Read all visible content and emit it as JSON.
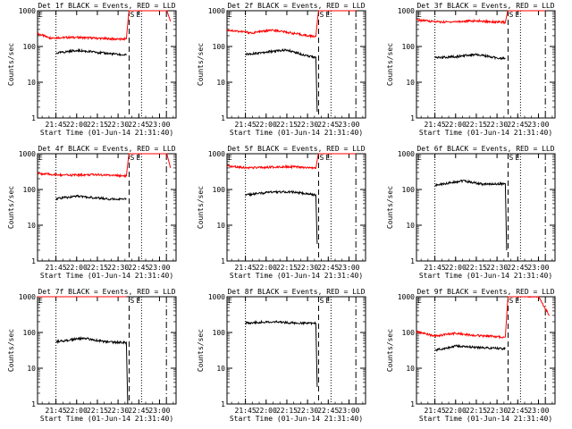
{
  "chart_data": [
    {
      "type": "line",
      "title": "Det 1f BLACK = Events, RED = LLD",
      "xlabel": "Start Time (01-Jun-14 21:31:40)",
      "ylabel": "Counts/sec",
      "x_ticks": [
        "21:45",
        "22:00",
        "22:15",
        "22:30",
        "22:45",
        "23:00"
      ],
      "y_ticks": [
        "1",
        "10",
        "100",
        "1000"
      ],
      "ylim": [
        1,
        1000
      ],
      "y_scale": "log",
      "markers": [
        "S",
        "E",
        "E"
      ],
      "series": [
        {
          "color": "#ff0000",
          "values": [
            {
              "t": "21:31:40",
              "v": 230
            },
            {
              "t": "21:40",
              "v": 175
            },
            {
              "t": "22:00",
              "v": 180
            },
            {
              "t": "22:30",
              "v": 160
            },
            {
              "t": "22:36",
              "v": 165
            },
            {
              "t": "22:38",
              "v": 1100
            },
            {
              "t": "23:05",
              "v": 1100
            },
            {
              "t": "23:08",
              "v": 500
            }
          ]
        },
        {
          "color": "#000000",
          "values": [
            {
              "t": "21:45",
              "v": 65
            },
            {
              "t": "22:00",
              "v": 78
            },
            {
              "t": "22:15",
              "v": 68
            },
            {
              "t": "22:30",
              "v": 60
            },
            {
              "t": "22:36",
              "v": 57
            }
          ]
        }
      ]
    },
    {
      "type": "line",
      "title": "Det 2f BLACK = Events, RED = LLD",
      "xlabel": "Start Time (01-Jun-14 21:31:40)",
      "ylabel": "Counts/sec",
      "x_ticks": [
        "21:45",
        "22:00",
        "22:15",
        "22:30",
        "22:45",
        "23:00"
      ],
      "y_ticks": [
        "1",
        "10",
        "100",
        "1000"
      ],
      "ylim": [
        1,
        1000
      ],
      "y_scale": "log",
      "markers": [
        "S",
        "E",
        "E"
      ],
      "series": [
        {
          "color": "#ff0000",
          "values": [
            {
              "t": "21:31:40",
              "v": 290
            },
            {
              "t": "21:50",
              "v": 240
            },
            {
              "t": "22:05",
              "v": 290
            },
            {
              "t": "22:30",
              "v": 200
            },
            {
              "t": "22:36",
              "v": 190
            },
            {
              "t": "22:38",
              "v": 1100
            },
            {
              "t": "23:05",
              "v": 1100
            }
          ]
        },
        {
          "color": "#000000",
          "values": [
            {
              "t": "21:45",
              "v": 60
            },
            {
              "t": "22:00",
              "v": 70
            },
            {
              "t": "22:15",
              "v": 80
            },
            {
              "t": "22:30",
              "v": 55
            },
            {
              "t": "22:36",
              "v": 50
            },
            {
              "t": "22:37",
              "v": 1.5
            }
          ]
        }
      ]
    },
    {
      "type": "line",
      "title": "Det 3f BLACK = Events, RED = LLD",
      "xlabel": "Start Time (01-Jun-14 21:31:40)",
      "ylabel": "Counts/sec",
      "x_ticks": [
        "21:45",
        "22:00",
        "22:15",
        "22:30",
        "22:45",
        "23:00"
      ],
      "y_ticks": [
        "1",
        "10",
        "100",
        "1000"
      ],
      "ylim": [
        1,
        1000
      ],
      "y_scale": "log",
      "markers": [
        "S",
        "E",
        "E"
      ],
      "series": [
        {
          "color": "#ff0000",
          "values": [
            {
              "t": "21:31:40",
              "v": 550
            },
            {
              "t": "21:50",
              "v": 480
            },
            {
              "t": "22:15",
              "v": 520
            },
            {
              "t": "22:36",
              "v": 470
            },
            {
              "t": "22:38",
              "v": 1100
            },
            {
              "t": "23:05",
              "v": 1100
            }
          ]
        },
        {
          "color": "#000000",
          "values": [
            {
              "t": "21:45",
              "v": 48
            },
            {
              "t": "22:00",
              "v": 52
            },
            {
              "t": "22:15",
              "v": 60
            },
            {
              "t": "22:30",
              "v": 48
            },
            {
              "t": "22:36",
              "v": 47
            }
          ]
        }
      ]
    },
    {
      "type": "line",
      "title": "Det 4f BLACK = Events, RED = LLD",
      "xlabel": "Start Time (01-Jun-14 21:31:40)",
      "ylabel": "Counts/sec",
      "x_ticks": [
        "21:45",
        "22:00",
        "22:15",
        "22:30",
        "22:45",
        "23:00"
      ],
      "y_ticks": [
        "1",
        "10",
        "100",
        "1000"
      ],
      "ylim": [
        1,
        1000
      ],
      "y_scale": "log",
      "markers": [
        "S",
        "E",
        "E"
      ],
      "series": [
        {
          "color": "#ff0000",
          "values": [
            {
              "t": "21:31:40",
              "v": 280
            },
            {
              "t": "21:50",
              "v": 250
            },
            {
              "t": "22:15",
              "v": 260
            },
            {
              "t": "22:36",
              "v": 240
            },
            {
              "t": "22:38",
              "v": 1100
            },
            {
              "t": "23:05",
              "v": 1100
            },
            {
              "t": "23:08",
              "v": 400
            }
          ]
        },
        {
          "color": "#000000",
          "values": [
            {
              "t": "21:45",
              "v": 55
            },
            {
              "t": "22:00",
              "v": 65
            },
            {
              "t": "22:15",
              "v": 58
            },
            {
              "t": "22:30",
              "v": 52
            },
            {
              "t": "22:36",
              "v": 55
            }
          ]
        }
      ]
    },
    {
      "type": "line",
      "title": "Det 5f BLACK = Events, RED = LLD",
      "xlabel": "Start Time (01-Jun-14 21:31:40)",
      "ylabel": "Counts/sec",
      "x_ticks": [
        "21:45",
        "22:00",
        "22:15",
        "22:30",
        "22:45",
        "23:00"
      ],
      "y_ticks": [
        "1",
        "10",
        "100",
        "1000"
      ],
      "ylim": [
        1,
        1000
      ],
      "y_scale": "log",
      "markers": [
        "S",
        "E",
        "E"
      ],
      "series": [
        {
          "color": "#ff0000",
          "values": [
            {
              "t": "21:31:40",
              "v": 450
            },
            {
              "t": "21:50",
              "v": 400
            },
            {
              "t": "22:15",
              "v": 440
            },
            {
              "t": "22:36",
              "v": 390
            },
            {
              "t": "22:38",
              "v": 1100
            },
            {
              "t": "23:05",
              "v": 1100
            }
          ]
        },
        {
          "color": "#000000",
          "values": [
            {
              "t": "21:45",
              "v": 70
            },
            {
              "t": "22:05",
              "v": 85
            },
            {
              "t": "22:20",
              "v": 85
            },
            {
              "t": "22:36",
              "v": 70
            },
            {
              "t": "22:37",
              "v": 3
            }
          ]
        }
      ]
    },
    {
      "type": "line",
      "title": "Det 6f BLACK = Events, RED = LLD",
      "xlabel": "Start Time (01-Jun-14 21:31:40)",
      "ylabel": "Counts/sec",
      "x_ticks": [
        "21:45",
        "22:00",
        "22:15",
        "22:30",
        "22:45",
        "23:00"
      ],
      "y_ticks": [
        "1",
        "10",
        "100",
        "1000"
      ],
      "ylim": [
        1,
        1000
      ],
      "y_scale": "log",
      "markers": [
        "S",
        "E",
        "E"
      ],
      "series": [
        {
          "color": "#000000",
          "values": [
            {
              "t": "21:45",
              "v": 130
            },
            {
              "t": "22:05",
              "v": 175
            },
            {
              "t": "22:20",
              "v": 140
            },
            {
              "t": "22:36",
              "v": 145
            },
            {
              "t": "22:37",
              "v": 2
            }
          ]
        }
      ]
    },
    {
      "type": "line",
      "title": "Det 7f BLACK = Events, RED = LLD",
      "xlabel": "Start Time (01-Jun-14 21:31:40)",
      "ylabel": "Counts/sec",
      "x_ticks": [
        "21:45",
        "22:00",
        "22:15",
        "22:30",
        "22:45",
        "23:00"
      ],
      "y_ticks": [
        "1",
        "10",
        "100",
        "1000"
      ],
      "ylim": [
        1,
        1000
      ],
      "y_scale": "log",
      "markers": [
        "S",
        "E",
        "E"
      ],
      "series": [
        {
          "color": "#ff0000",
          "values": [
            {
              "t": "21:31:40",
              "v": 1150
            },
            {
              "t": "22:36",
              "v": 1150
            }
          ]
        },
        {
          "color": "#000000",
          "values": [
            {
              "t": "21:45",
              "v": 55
            },
            {
              "t": "22:05",
              "v": 70
            },
            {
              "t": "22:20",
              "v": 55
            },
            {
              "t": "22:36",
              "v": 52
            },
            {
              "t": "22:37",
              "v": 1
            }
          ]
        }
      ]
    },
    {
      "type": "line",
      "title": "Det 8f BLACK = Events, RED = LLD",
      "xlabel": "Start Time (01-Jun-14 21:31:40)",
      "ylabel": "Counts/sec",
      "x_ticks": [
        "21:45",
        "22:00",
        "22:15",
        "22:30",
        "22:45",
        "23:00"
      ],
      "y_ticks": [
        "1",
        "10",
        "100",
        "1000"
      ],
      "ylim": [
        1,
        1000
      ],
      "y_scale": "log",
      "markers": [
        "S",
        "E",
        "E"
      ],
      "series": [
        {
          "color": "#000000",
          "values": [
            {
              "t": "21:45",
              "v": 185
            },
            {
              "t": "22:05",
              "v": 200
            },
            {
              "t": "22:20",
              "v": 185
            },
            {
              "t": "22:36",
              "v": 180
            },
            {
              "t": "22:37",
              "v": 3
            }
          ]
        }
      ]
    },
    {
      "type": "line",
      "title": "Det 9f BLACK = Events, RED = LLD",
      "xlabel": "Start Time (01-Jun-14 21:31:40)",
      "ylabel": "Counts/sec",
      "x_ticks": [
        "21:45",
        "22:00",
        "22:15",
        "22:30",
        "22:45",
        "23:00"
      ],
      "y_ticks": [
        "1",
        "10",
        "100",
        "1000"
      ],
      "ylim": [
        1,
        1000
      ],
      "y_scale": "log",
      "markers": [
        "S",
        "E",
        "E"
      ],
      "series": [
        {
          "color": "#ff0000",
          "values": [
            {
              "t": "21:31:40",
              "v": 105
            },
            {
              "t": "21:45",
              "v": 80
            },
            {
              "t": "22:00",
              "v": 95
            },
            {
              "t": "22:15",
              "v": 82
            },
            {
              "t": "22:36",
              "v": 75
            },
            {
              "t": "22:38",
              "v": 1100
            },
            {
              "t": "23:00",
              "v": 1000
            },
            {
              "t": "23:08",
              "v": 300
            }
          ]
        },
        {
          "color": "#000000",
          "values": [
            {
              "t": "21:45",
              "v": 32
            },
            {
              "t": "22:00",
              "v": 42
            },
            {
              "t": "22:15",
              "v": 38
            },
            {
              "t": "22:36",
              "v": 35
            }
          ]
        }
      ]
    }
  ]
}
